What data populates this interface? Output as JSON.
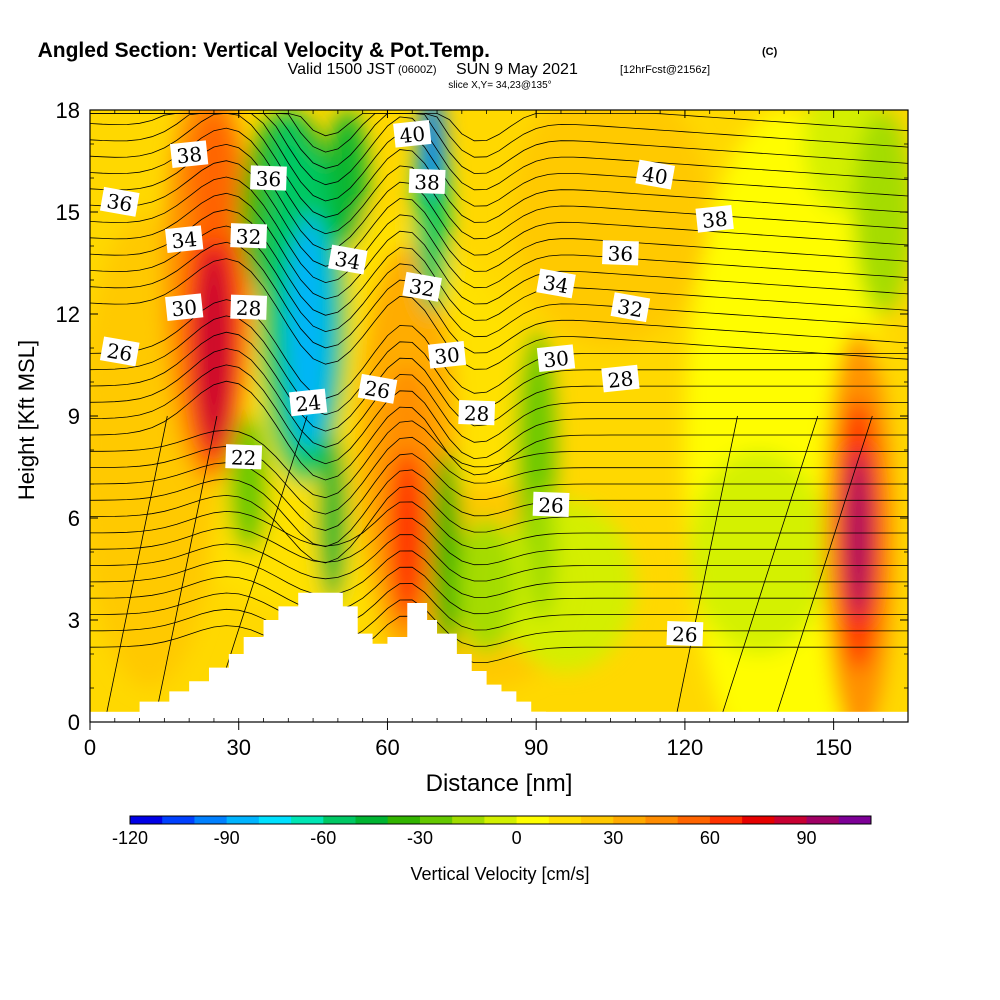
{
  "header": {
    "title_main": "Angled Section: Vertical Velocity & Pot.Temp.",
    "title_units": "(C)",
    "valid_prefix": "Valid 1500 JST",
    "valid_utc": "(0600Z)",
    "valid_date": "SUN 9 May 2021",
    "forecast": "[12hrFcst@2156z]",
    "slice": "slice X,Y= 34,23@135°"
  },
  "chart_data": {
    "type": "heatmap",
    "xlabel": "Distance [nm]",
    "ylabel": "Height [Kft MSL]",
    "xlim": [
      0,
      165
    ],
    "ylim": [
      0,
      18
    ],
    "x_ticks": [
      "0",
      "30",
      "60",
      "90",
      "120",
      "150"
    ],
    "y_ticks": [
      "0",
      "3",
      "6",
      "9",
      "12",
      "15",
      "18"
    ],
    "colorbar": {
      "label": "Vertical Velocity [cm/s]",
      "tick_labels": [
        "-120",
        "-90",
        "-60",
        "-30",
        "0",
        "30",
        "60",
        "90"
      ],
      "levels": [
        -120,
        -110,
        -100,
        -90,
        -80,
        -70,
        -60,
        -50,
        -40,
        -30,
        -20,
        -10,
        0,
        10,
        20,
        30,
        40,
        50,
        60,
        70,
        80,
        90,
        100
      ],
      "colors": [
        "#0000e6",
        "#0040ff",
        "#0080ff",
        "#00b4ff",
        "#00e1ff",
        "#00e6b4",
        "#00c864",
        "#00b432",
        "#32b400",
        "#64c800",
        "#a0dc00",
        "#d2f000",
        "#ffff00",
        "#ffe100",
        "#ffc800",
        "#ffaa00",
        "#ff8c00",
        "#ff6400",
        "#ff3200",
        "#e60000",
        "#c80032",
        "#a00064",
        "#7d0096"
      ]
    },
    "vertical_velocity_features": [
      {
        "kind": "updraft",
        "x": 25,
        "y": 12,
        "peak_cms": 95
      },
      {
        "kind": "updraft",
        "x": 64,
        "y": 6,
        "peak_cms": 60
      },
      {
        "kind": "updraft",
        "x": 155,
        "y": 5.5,
        "peak_cms": 95
      },
      {
        "kind": "downdraft",
        "x": 44,
        "y": 12,
        "peak_cms": -85
      },
      {
        "kind": "downdraft",
        "x": 69,
        "y": 17,
        "peak_cms": -95
      },
      {
        "kind": "downdraft",
        "x": 90,
        "y": 8,
        "peak_cms": -35
      }
    ],
    "potential_temperature_labels": [
      {
        "text": "38",
        "x": 20,
        "y": 16.7
      },
      {
        "text": "36",
        "x": 36,
        "y": 16.0
      },
      {
        "text": "36",
        "x": 6,
        "y": 15.3
      },
      {
        "text": "34",
        "x": 19,
        "y": 14.2
      },
      {
        "text": "32",
        "x": 32,
        "y": 14.3
      },
      {
        "text": "34",
        "x": 52,
        "y": 13.6
      },
      {
        "text": "30",
        "x": 19,
        "y": 12.2
      },
      {
        "text": "28",
        "x": 32,
        "y": 12.2
      },
      {
        "text": "26",
        "x": 6,
        "y": 10.9
      },
      {
        "text": "24",
        "x": 44,
        "y": 9.4
      },
      {
        "text": "22",
        "x": 31,
        "y": 7.8
      },
      {
        "text": "26",
        "x": 58,
        "y": 9.8
      },
      {
        "text": "40",
        "x": 65,
        "y": 17.3
      },
      {
        "text": "38",
        "x": 68,
        "y": 15.9
      },
      {
        "text": "32",
        "x": 67,
        "y": 12.8
      },
      {
        "text": "30",
        "x": 72,
        "y": 10.8
      },
      {
        "text": "28",
        "x": 78,
        "y": 9.1
      },
      {
        "text": "34",
        "x": 94,
        "y": 12.9
      },
      {
        "text": "30",
        "x": 94,
        "y": 10.7
      },
      {
        "text": "26",
        "x": 93,
        "y": 6.4
      },
      {
        "text": "40",
        "x": 114,
        "y": 16.1
      },
      {
        "text": "38",
        "x": 126,
        "y": 14.8
      },
      {
        "text": "36",
        "x": 107,
        "y": 13.8
      },
      {
        "text": "32",
        "x": 109,
        "y": 12.2
      },
      {
        "text": "28",
        "x": 107,
        "y": 10.1
      },
      {
        "text": "26",
        "x": 120,
        "y": 2.6
      }
    ],
    "terrain_profile": [
      [
        10,
        0.6
      ],
      [
        16,
        0.9
      ],
      [
        20,
        1.2
      ],
      [
        24,
        1.6
      ],
      [
        28,
        2.0
      ],
      [
        31,
        2.5
      ],
      [
        35,
        3.0
      ],
      [
        38,
        3.4
      ],
      [
        42,
        3.8
      ],
      [
        51,
        3.4
      ],
      [
        54,
        2.6
      ],
      [
        57,
        2.3
      ],
      [
        60,
        2.5
      ],
      [
        64,
        3.5
      ],
      [
        68,
        3.0
      ],
      [
        70,
        2.6
      ],
      [
        74,
        2.0
      ],
      [
        77,
        1.5
      ],
      [
        80,
        1.1
      ],
      [
        83,
        0.9
      ],
      [
        86,
        0.6
      ],
      [
        89,
        0.3
      ]
    ]
  }
}
